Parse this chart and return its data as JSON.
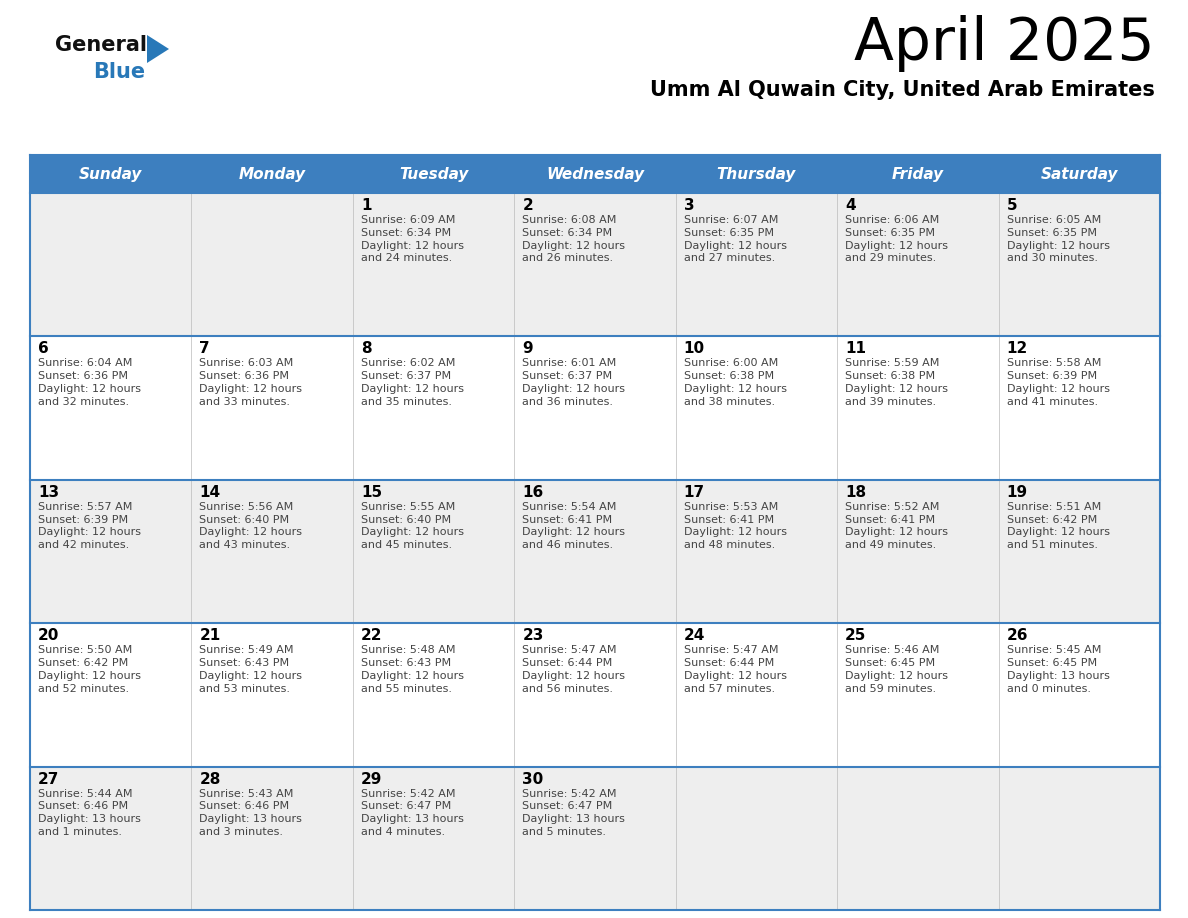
{
  "title": "April 2025",
  "subtitle": "Umm Al Quwain City, United Arab Emirates",
  "days_of_week": [
    "Sunday",
    "Monday",
    "Tuesday",
    "Wednesday",
    "Thursday",
    "Friday",
    "Saturday"
  ],
  "header_bg_color": "#3d7fbf",
  "header_text_color": "#ffffff",
  "cell_bg_color_even": "#eeeeee",
  "cell_bg_color_odd": "#ffffff",
  "grid_line_color": "#3d7fbf",
  "day_num_color": "#000000",
  "cell_text_color": "#444444",
  "title_color": "#000000",
  "subtitle_color": "#000000",
  "logo_general_color": "#111111",
  "logo_blue_color": "#2878b8",
  "calendar_data": [
    {
      "day": 1,
      "col": 2,
      "row": 0,
      "sunrise": "6:09 AM",
      "sunset": "6:34 PM",
      "daylight_hours": 12,
      "daylight_minutes": 24
    },
    {
      "day": 2,
      "col": 3,
      "row": 0,
      "sunrise": "6:08 AM",
      "sunset": "6:34 PM",
      "daylight_hours": 12,
      "daylight_minutes": 26
    },
    {
      "day": 3,
      "col": 4,
      "row": 0,
      "sunrise": "6:07 AM",
      "sunset": "6:35 PM",
      "daylight_hours": 12,
      "daylight_minutes": 27
    },
    {
      "day": 4,
      "col": 5,
      "row": 0,
      "sunrise": "6:06 AM",
      "sunset": "6:35 PM",
      "daylight_hours": 12,
      "daylight_minutes": 29
    },
    {
      "day": 5,
      "col": 6,
      "row": 0,
      "sunrise": "6:05 AM",
      "sunset": "6:35 PM",
      "daylight_hours": 12,
      "daylight_minutes": 30
    },
    {
      "day": 6,
      "col": 0,
      "row": 1,
      "sunrise": "6:04 AM",
      "sunset": "6:36 PM",
      "daylight_hours": 12,
      "daylight_minutes": 32
    },
    {
      "day": 7,
      "col": 1,
      "row": 1,
      "sunrise": "6:03 AM",
      "sunset": "6:36 PM",
      "daylight_hours": 12,
      "daylight_minutes": 33
    },
    {
      "day": 8,
      "col": 2,
      "row": 1,
      "sunrise": "6:02 AM",
      "sunset": "6:37 PM",
      "daylight_hours": 12,
      "daylight_minutes": 35
    },
    {
      "day": 9,
      "col": 3,
      "row": 1,
      "sunrise": "6:01 AM",
      "sunset": "6:37 PM",
      "daylight_hours": 12,
      "daylight_minutes": 36
    },
    {
      "day": 10,
      "col": 4,
      "row": 1,
      "sunrise": "6:00 AM",
      "sunset": "6:38 PM",
      "daylight_hours": 12,
      "daylight_minutes": 38
    },
    {
      "day": 11,
      "col": 5,
      "row": 1,
      "sunrise": "5:59 AM",
      "sunset": "6:38 PM",
      "daylight_hours": 12,
      "daylight_minutes": 39
    },
    {
      "day": 12,
      "col": 6,
      "row": 1,
      "sunrise": "5:58 AM",
      "sunset": "6:39 PM",
      "daylight_hours": 12,
      "daylight_minutes": 41
    },
    {
      "day": 13,
      "col": 0,
      "row": 2,
      "sunrise": "5:57 AM",
      "sunset": "6:39 PM",
      "daylight_hours": 12,
      "daylight_minutes": 42
    },
    {
      "day": 14,
      "col": 1,
      "row": 2,
      "sunrise": "5:56 AM",
      "sunset": "6:40 PM",
      "daylight_hours": 12,
      "daylight_minutes": 43
    },
    {
      "day": 15,
      "col": 2,
      "row": 2,
      "sunrise": "5:55 AM",
      "sunset": "6:40 PM",
      "daylight_hours": 12,
      "daylight_minutes": 45
    },
    {
      "day": 16,
      "col": 3,
      "row": 2,
      "sunrise": "5:54 AM",
      "sunset": "6:41 PM",
      "daylight_hours": 12,
      "daylight_minutes": 46
    },
    {
      "day": 17,
      "col": 4,
      "row": 2,
      "sunrise": "5:53 AM",
      "sunset": "6:41 PM",
      "daylight_hours": 12,
      "daylight_minutes": 48
    },
    {
      "day": 18,
      "col": 5,
      "row": 2,
      "sunrise": "5:52 AM",
      "sunset": "6:41 PM",
      "daylight_hours": 12,
      "daylight_minutes": 49
    },
    {
      "day": 19,
      "col": 6,
      "row": 2,
      "sunrise": "5:51 AM",
      "sunset": "6:42 PM",
      "daylight_hours": 12,
      "daylight_minutes": 51
    },
    {
      "day": 20,
      "col": 0,
      "row": 3,
      "sunrise": "5:50 AM",
      "sunset": "6:42 PM",
      "daylight_hours": 12,
      "daylight_minutes": 52
    },
    {
      "day": 21,
      "col": 1,
      "row": 3,
      "sunrise": "5:49 AM",
      "sunset": "6:43 PM",
      "daylight_hours": 12,
      "daylight_minutes": 53
    },
    {
      "day": 22,
      "col": 2,
      "row": 3,
      "sunrise": "5:48 AM",
      "sunset": "6:43 PM",
      "daylight_hours": 12,
      "daylight_minutes": 55
    },
    {
      "day": 23,
      "col": 3,
      "row": 3,
      "sunrise": "5:47 AM",
      "sunset": "6:44 PM",
      "daylight_hours": 12,
      "daylight_minutes": 56
    },
    {
      "day": 24,
      "col": 4,
      "row": 3,
      "sunrise": "5:47 AM",
      "sunset": "6:44 PM",
      "daylight_hours": 12,
      "daylight_minutes": 57
    },
    {
      "day": 25,
      "col": 5,
      "row": 3,
      "sunrise": "5:46 AM",
      "sunset": "6:45 PM",
      "daylight_hours": 12,
      "daylight_minutes": 59
    },
    {
      "day": 26,
      "col": 6,
      "row": 3,
      "sunrise": "5:45 AM",
      "sunset": "6:45 PM",
      "daylight_hours": 13,
      "daylight_minutes": 0
    },
    {
      "day": 27,
      "col": 0,
      "row": 4,
      "sunrise": "5:44 AM",
      "sunset": "6:46 PM",
      "daylight_hours": 13,
      "daylight_minutes": 1
    },
    {
      "day": 28,
      "col": 1,
      "row": 4,
      "sunrise": "5:43 AM",
      "sunset": "6:46 PM",
      "daylight_hours": 13,
      "daylight_minutes": 3
    },
    {
      "day": 29,
      "col": 2,
      "row": 4,
      "sunrise": "5:42 AM",
      "sunset": "6:47 PM",
      "daylight_hours": 13,
      "daylight_minutes": 4
    },
    {
      "day": 30,
      "col": 3,
      "row": 4,
      "sunrise": "5:42 AM",
      "sunset": "6:47 PM",
      "daylight_hours": 13,
      "daylight_minutes": 5
    }
  ]
}
